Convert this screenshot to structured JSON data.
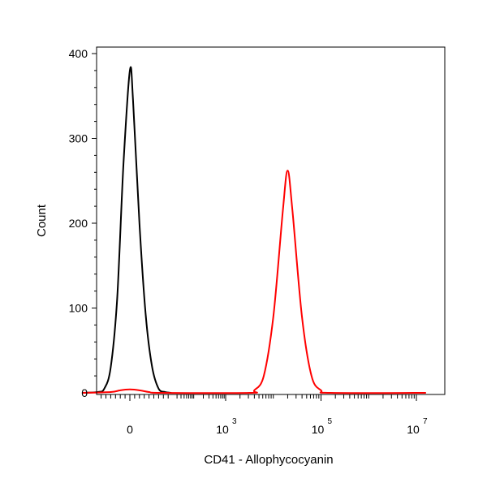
{
  "chart_data": {
    "type": "line",
    "xlabel": "CD41 - Allophycocyanin",
    "ylabel": "Count",
    "x_scale": "biexponential",
    "ylim": [
      0,
      400
    ],
    "y_ticks": [
      0,
      100,
      200,
      300,
      400
    ],
    "x_ticks": [
      {
        "base": "0",
        "exp": ""
      },
      {
        "base": "10",
        "exp": "3"
      },
      {
        "base": "10",
        "exp": "5"
      },
      {
        "base": "10",
        "exp": "7"
      }
    ],
    "grid": false,
    "series": [
      {
        "color": "#000000",
        "points": [
          [
            -1.5,
            0
          ],
          [
            -1.0,
            1
          ],
          [
            -0.8,
            5
          ],
          [
            -0.6,
            30
          ],
          [
            -0.4,
            110
          ],
          [
            -0.2,
            270
          ],
          [
            0,
            380
          ],
          [
            0.1,
            345
          ],
          [
            0.3,
            200
          ],
          [
            0.5,
            90
          ],
          [
            0.7,
            30
          ],
          [
            0.9,
            5
          ],
          [
            1.1,
            1
          ],
          [
            1.3,
            0
          ]
        ]
      },
      {
        "color": "#ff0000",
        "points": [
          [
            -1.5,
            0
          ],
          [
            -0.6,
            1
          ],
          [
            -0.3,
            3
          ],
          [
            0,
            4
          ],
          [
            0.3,
            3
          ],
          [
            0.6,
            1
          ],
          [
            1.0,
            0
          ],
          [
            3.5,
            0
          ],
          [
            3.6,
            3
          ],
          [
            3.8,
            20
          ],
          [
            4.0,
            90
          ],
          [
            4.2,
            215
          ],
          [
            4.3,
            262
          ],
          [
            4.4,
            215
          ],
          [
            4.6,
            90
          ],
          [
            4.8,
            20
          ],
          [
            5.0,
            3
          ],
          [
            5.2,
            0
          ],
          [
            7.2,
            0
          ]
        ]
      }
    ]
  }
}
